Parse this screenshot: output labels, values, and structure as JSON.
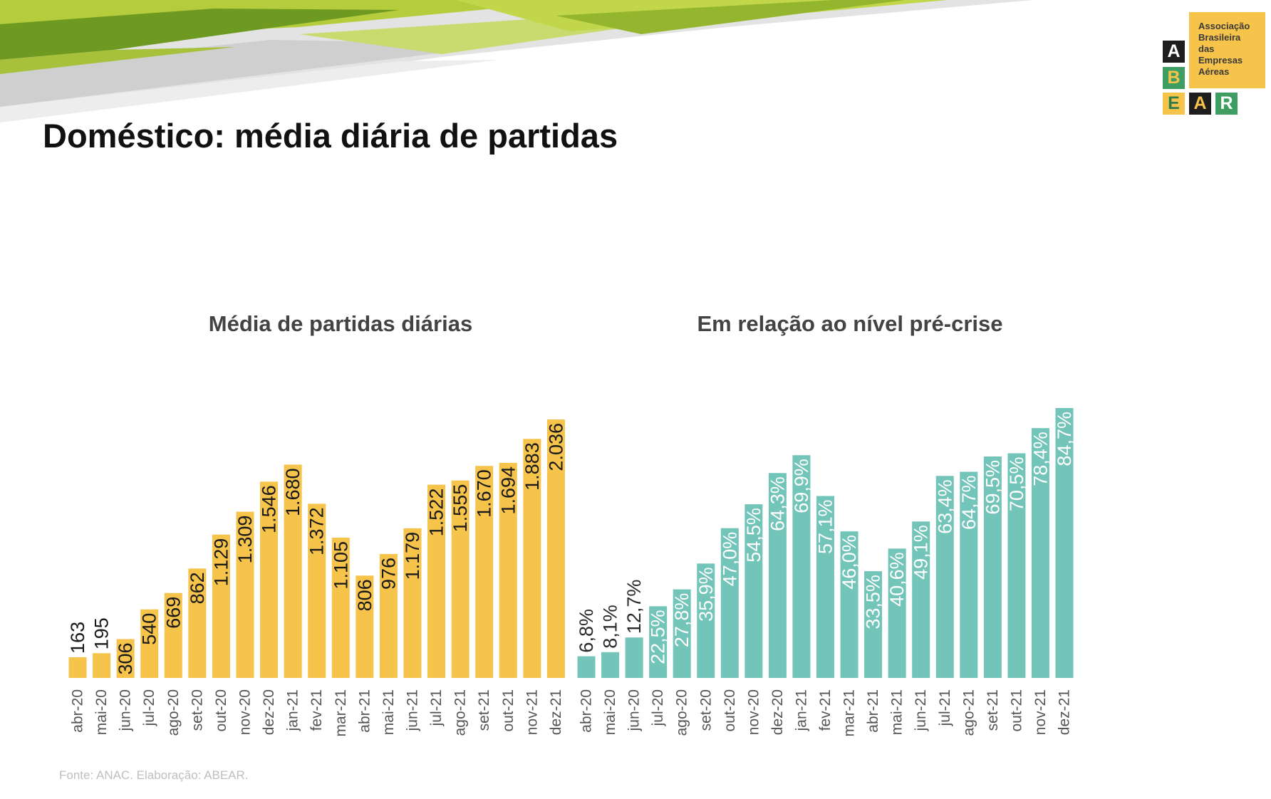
{
  "slide": {
    "title": "Doméstico: média diária de partidas",
    "source": "Fonte: ANAC. Elaboração: ABEAR."
  },
  "logo": {
    "name_lines": [
      "Associação",
      "Brasileira",
      "das",
      "Empresas",
      "Aéreas"
    ],
    "letters": [
      "A",
      "B",
      "E",
      "A",
      "R"
    ]
  },
  "colors": {
    "accent_yellow": "#F6C34B",
    "accent_teal": "#73C4B9",
    "logo_green": "#3E9E62",
    "logo_black": "#1E1E1E"
  },
  "chart_data": [
    {
      "type": "bar",
      "title": "Média de partidas diárias",
      "categories": [
        "abr-20",
        "mai-20",
        "jun-20",
        "jul-20",
        "ago-20",
        "set-20",
        "out-20",
        "nov-20",
        "dez-20",
        "jan-21",
        "fev-21",
        "mar-21",
        "abr-21",
        "mai-21",
        "jun-21",
        "jul-21",
        "ago-21",
        "set-21",
        "out-21",
        "nov-21",
        "dez-21"
      ],
      "values": [
        163,
        195,
        306,
        540,
        669,
        862,
        1129,
        1309,
        1546,
        1680,
        1372,
        1105,
        806,
        976,
        1179,
        1522,
        1555,
        1670,
        1694,
        1883,
        2036
      ],
      "data_labels": [
        "163",
        "195",
        "306",
        "540",
        "669",
        "862",
        "1.129",
        "1.309",
        "1.546",
        "1.680",
        "1.372",
        "1.105",
        "806",
        "976",
        "1.179",
        "1.522",
        "1.555",
        "1.670",
        "1.694",
        "1.883",
        "2.036"
      ],
      "color": "#F6C34B",
      "grid": false,
      "legend": "none"
    },
    {
      "type": "bar",
      "title": "Em relação ao nível pré-crise",
      "categories": [
        "abr-20",
        "mai-20",
        "jun-20",
        "jul-20",
        "ago-20",
        "set-20",
        "out-20",
        "nov-20",
        "dez-20",
        "jan-21",
        "fev-21",
        "mar-21",
        "abr-21",
        "mai-21",
        "jun-21",
        "jul-21",
        "ago-21",
        "set-21",
        "out-21",
        "nov-21",
        "dez-21"
      ],
      "values": [
        6.8,
        8.1,
        12.7,
        22.5,
        27.8,
        35.9,
        47.0,
        54.5,
        64.3,
        69.9,
        57.1,
        46.0,
        33.5,
        40.6,
        49.1,
        63.4,
        64.7,
        69.5,
        70.5,
        78.4,
        84.7
      ],
      "data_labels": [
        "6,8%",
        "8,1%",
        "12,7%",
        "22,5%",
        "27,8%",
        "35,9%",
        "47,0%",
        "54,5%",
        "64,3%",
        "69,9%",
        "57,1%",
        "46,0%",
        "33,5%",
        "40,6%",
        "49,1%",
        "63,4%",
        "64,7%",
        "69,5%",
        "70,5%",
        "78,4%",
        "84,7%"
      ],
      "color": "#73C4B9",
      "grid": false,
      "legend": "none"
    }
  ]
}
